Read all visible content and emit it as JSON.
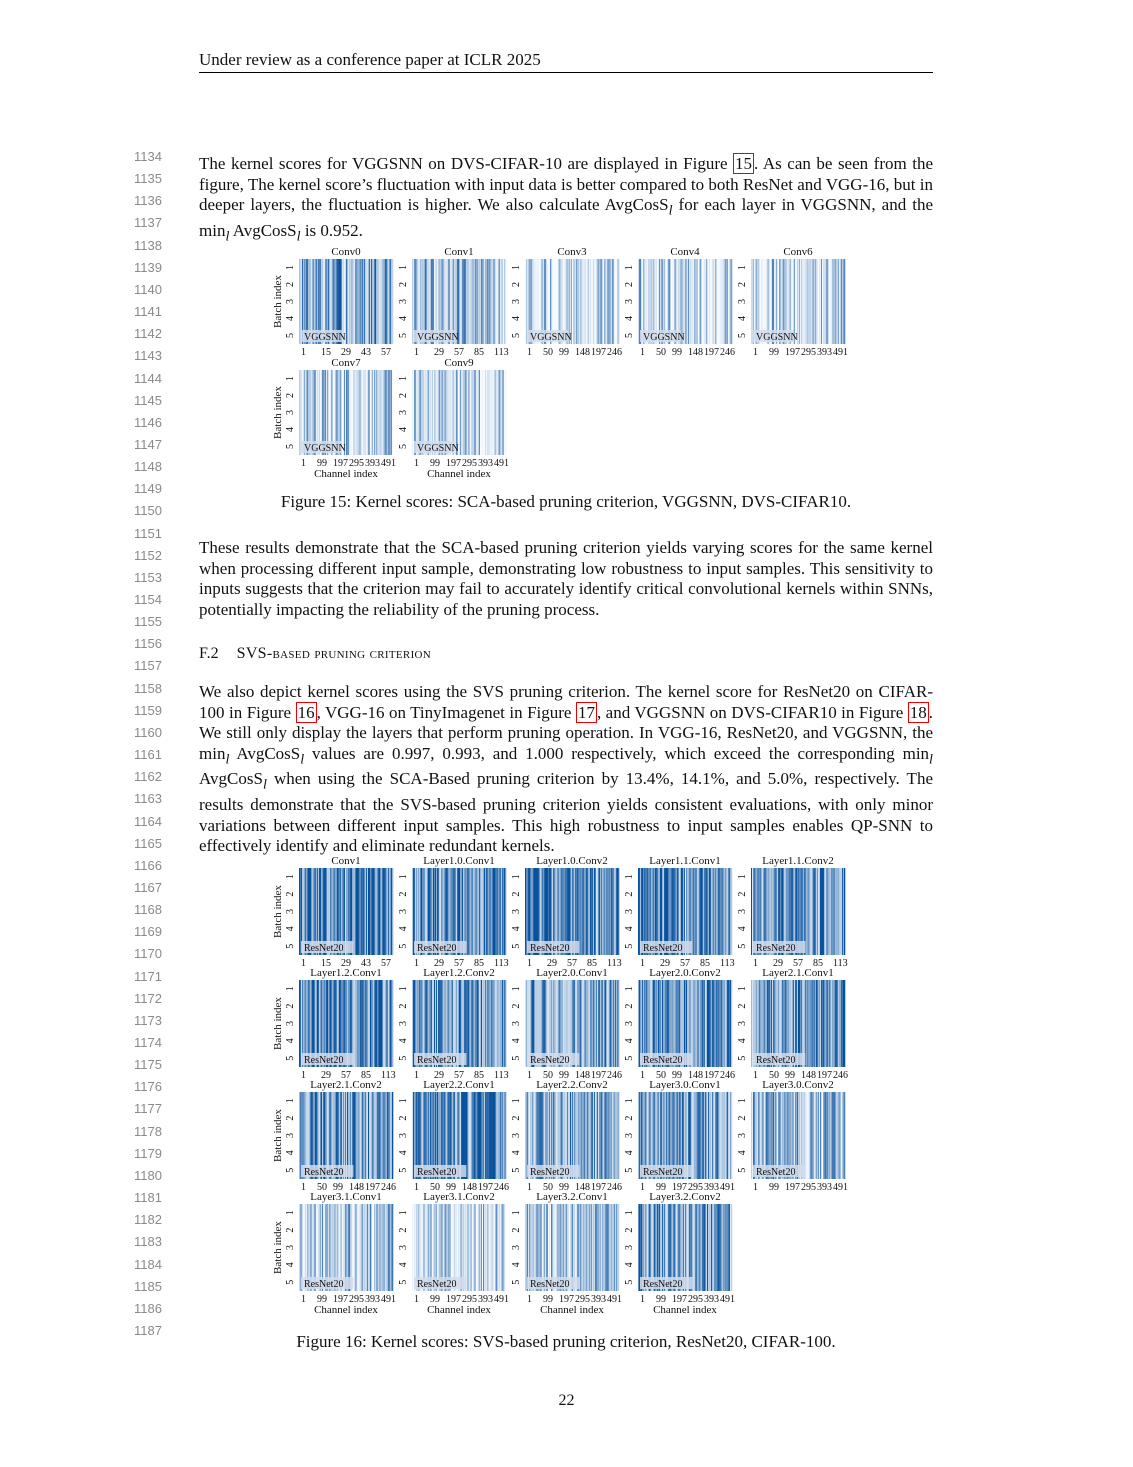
{
  "header": "Under review as a conference paper at ICLR 2025",
  "line_numbers": [
    "1134",
    "1135",
    "1136",
    "1137",
    "1138",
    "1139",
    "1140",
    "1141",
    "1142",
    "1143",
    "1144",
    "1145",
    "1146",
    "1147",
    "1148",
    "1149",
    "1150",
    "1151",
    "1152",
    "1153",
    "1154",
    "1155",
    "1156",
    "1157",
    "1158",
    "1159",
    "1160",
    "1161",
    "1162",
    "1163",
    "1164",
    "1165",
    "1166",
    "1167",
    "1168",
    "1169",
    "1170",
    "1171",
    "1172",
    "1173",
    "1174",
    "1175",
    "1176",
    "1177",
    "1178",
    "1179",
    "1180",
    "1181",
    "1182",
    "1183",
    "1184",
    "1185",
    "1186",
    "1187"
  ],
  "para1": {
    "t1": "The kernel scores for VGGSNN on DVS-CIFAR-10 are displayed in Figure ",
    "ref": "15",
    "t2": ". As can be seen from the figure, The kernel score’s fluctuation with input data is better compared to both ResNet and VGG-16, but in deeper layers, the fluctuation is higher. We also calculate AvgCosS",
    "sub1": "l",
    "t3": " for each layer in VGGSNN, and the min",
    "sub2": "l",
    "t4": " AvgCosS",
    "sub3": "l",
    "t5": " is 0.952."
  },
  "figure15_caption": "Figure 15: Kernel scores: SCA-based pruning criterion, VGGSNN, DVS-CIFAR10.",
  "para2": "These results demonstrate that the SCA-based pruning criterion yields varying scores for the same kernel when processing different input sample, demonstrating low robustness to input samples. This sensitivity to inputs suggests that the criterion may fail to accurately identify critical convolutional kernels within SNNs, potentially impacting the reliability of the pruning process.",
  "section": {
    "number": "F.2",
    "title": "SVS-based pruning criterion"
  },
  "para3": {
    "t1": "We also depict kernel scores using the SVS pruning criterion. The kernel score for ResNet20 on CIFAR-100 in Figure ",
    "ref1": "16",
    "t2": ", VGG-16 on TinyImagenet in Figure ",
    "ref2": "17",
    "t3": ", and VGGSNN on DVS-CIFAR10 in Figure ",
    "ref3": "18",
    "t4": ". We still only display the layers that perform pruning operation. In VGG-16, ResNet20, and VGGSNN, the min",
    "sub1": "l",
    "t5": " AvgCosS",
    "sub2": "l",
    "t6": " values are 0.997, 0.993, and 1.000 respectively, which exceed the corresponding min",
    "sub3": "l",
    "t7": " AvgCosS",
    "sub4": "l",
    "t8": " when using the SCA-Based pruning criterion by 13.4%, 14.1%, and 5.0%, respectively. The results demonstrate that the SVS-based pruning criterion yields consistent evaluations, with only minor variations between different input samples. This high robustness to input samples enables QP-SNN to effectively identify and eliminate redundant kernels."
  },
  "figure16_caption": "Figure 16: Kernel scores: SVS-based pruning criterion, ResNet20, CIFAR-100.",
  "page_number": "22",
  "chart_data": [
    {
      "type": "heatmap",
      "figure": "15",
      "ylabel": "Batch index",
      "xlabel": "Channel index",
      "colormap": [
        "#f7fbff",
        "#08519c"
      ],
      "y_ticks": [
        "1",
        "2",
        "3",
        "4",
        "5"
      ],
      "legend_label": "VGGSNN",
      "panels": [
        {
          "title": "Conv0",
          "x_ticks": [
            "1",
            "15",
            "29",
            "43",
            "57"
          ],
          "intensity": 0.55
        },
        {
          "title": "Conv1",
          "x_ticks": [
            "1",
            "29",
            "57",
            "85",
            "113"
          ],
          "intensity": 0.45
        },
        {
          "title": "Conv3",
          "x_ticks": [
            "1",
            "50",
            "99",
            "148",
            "197",
            "246"
          ],
          "intensity": 0.25
        },
        {
          "title": "Conv4",
          "x_ticks": [
            "1",
            "50",
            "99",
            "148",
            "197",
            "246"
          ],
          "intensity": 0.3
        },
        {
          "title": "Conv6",
          "x_ticks": [
            "1",
            "99",
            "197",
            "295",
            "393",
            "491"
          ],
          "intensity": 0.28
        },
        {
          "title": "Conv7",
          "x_ticks": [
            "1",
            "99",
            "197",
            "295",
            "393",
            "491"
          ],
          "intensity": 0.32
        },
        {
          "title": "Conv9",
          "x_ticks": [
            "1",
            "99",
            "197",
            "295",
            "393",
            "491"
          ],
          "intensity": 0.25
        }
      ]
    },
    {
      "type": "heatmap",
      "figure": "16",
      "ylabel": "Batch index",
      "xlabel": "Channel index",
      "colormap": [
        "#f7fbff",
        "#08519c"
      ],
      "y_ticks": [
        "1",
        "2",
        "3",
        "4",
        "5"
      ],
      "legend_label": "ResNet20",
      "panels": [
        {
          "title": "Conv1",
          "x_ticks": [
            "1",
            "15",
            "29",
            "43",
            "57"
          ],
          "intensity": 0.85
        },
        {
          "title": "Layer1.0.Conv1",
          "x_ticks": [
            "1",
            "29",
            "57",
            "85",
            "113"
          ],
          "intensity": 0.8
        },
        {
          "title": "Layer1.0.Conv2",
          "x_ticks": [
            "1",
            "29",
            "57",
            "85",
            "113"
          ],
          "intensity": 0.9
        },
        {
          "title": "Layer1.1.Conv1",
          "x_ticks": [
            "1",
            "29",
            "57",
            "85",
            "113"
          ],
          "intensity": 0.8
        },
        {
          "title": "Layer1.1.Conv2",
          "x_ticks": [
            "1",
            "29",
            "57",
            "85",
            "113"
          ],
          "intensity": 0.7
        },
        {
          "title": "Layer1.2.Conv1",
          "x_ticks": [
            "1",
            "29",
            "57",
            "85",
            "113"
          ],
          "intensity": 0.85
        },
        {
          "title": "Layer1.2.Conv2",
          "x_ticks": [
            "1",
            "29",
            "57",
            "85",
            "113"
          ],
          "intensity": 0.8
        },
        {
          "title": "Layer2.0.Conv1",
          "x_ticks": [
            "1",
            "50",
            "99",
            "148",
            "197",
            "246"
          ],
          "intensity": 0.6
        },
        {
          "title": "Layer2.0.Conv2",
          "x_ticks": [
            "1",
            "50",
            "99",
            "148",
            "197",
            "246"
          ],
          "intensity": 0.85
        },
        {
          "title": "Layer2.1.Conv1",
          "x_ticks": [
            "1",
            "50",
            "99",
            "148",
            "197",
            "246"
          ],
          "intensity": 0.75
        },
        {
          "title": "Layer2.1.Conv2",
          "x_ticks": [
            "1",
            "50",
            "99",
            "148",
            "197",
            "246"
          ],
          "intensity": 0.7
        },
        {
          "title": "Layer2.2.Conv1",
          "x_ticks": [
            "1",
            "50",
            "99",
            "148",
            "197",
            "246"
          ],
          "intensity": 0.85
        },
        {
          "title": "Layer2.2.Conv2",
          "x_ticks": [
            "1",
            "50",
            "99",
            "148",
            "197",
            "246"
          ],
          "intensity": 0.55
        },
        {
          "title": "Layer3.0.Conv1",
          "x_ticks": [
            "1",
            "99",
            "197",
            "295",
            "393",
            "491"
          ],
          "intensity": 0.6
        },
        {
          "title": "Layer3.0.Conv2",
          "x_ticks": [
            "1",
            "99",
            "197",
            "295",
            "393",
            "491"
          ],
          "intensity": 0.45
        },
        {
          "title": "Layer3.1.Conv1",
          "x_ticks": [
            "1",
            "99",
            "197",
            "295",
            "393",
            "491"
          ],
          "intensity": 0.35
        },
        {
          "title": "Layer3.1.Conv2",
          "x_ticks": [
            "1",
            "99",
            "197",
            "295",
            "393",
            "491"
          ],
          "intensity": 0.3
        },
        {
          "title": "Layer3.2.Conv1",
          "x_ticks": [
            "1",
            "99",
            "197",
            "295",
            "393",
            "491"
          ],
          "intensity": 0.35
        },
        {
          "title": "Layer3.2.Conv2",
          "x_ticks": [
            "1",
            "99",
            "197",
            "295",
            "393",
            "491"
          ],
          "intensity": 0.7
        }
      ]
    }
  ]
}
